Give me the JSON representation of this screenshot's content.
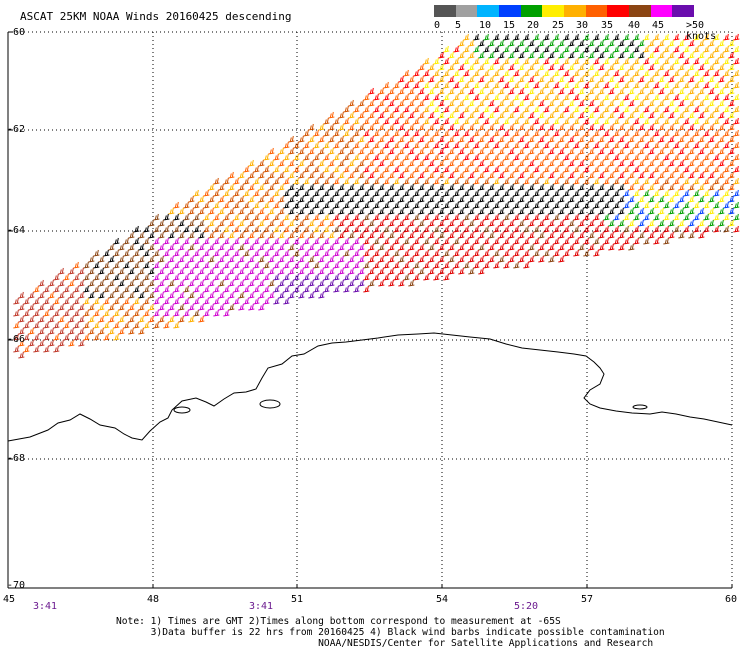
{
  "title": "ASCAT 25KM NOAA Winds 20160425 descending",
  "legend": {
    "labels": [
      "0",
      "5",
      "10",
      "15",
      "20",
      "25",
      "30",
      "35",
      "40",
      "45",
      ">50 knots"
    ],
    "colors": [
      "#555555",
      "#a0a0a0",
      "#00b4ff",
      "#0040ff",
      "#00a000",
      "#ffee00",
      "#ffb000",
      "#ff6000",
      "#ff0000",
      "#8b4513",
      "#ff00ff",
      "#6a0dad"
    ]
  },
  "axes": {
    "lat_labels": [
      "-60",
      "-62",
      "-64",
      "-66",
      "-68",
      "-70"
    ],
    "lon_labels": [
      "45",
      "48",
      "51",
      "54",
      "57",
      "60"
    ]
  },
  "times": [
    "3:41",
    "3:41",
    "5:20"
  ],
  "notes": {
    "line1": "Note: 1) Times are GMT 2)Times along bottom correspond to measurement at -65S",
    "line2": "      3)Data buffer is 22 hrs from 20160425 4) Black wind barbs indicate possible contamination",
    "line3": "                                   NOAA/NESDIS/Center for Satellite Applications and Research"
  }
}
